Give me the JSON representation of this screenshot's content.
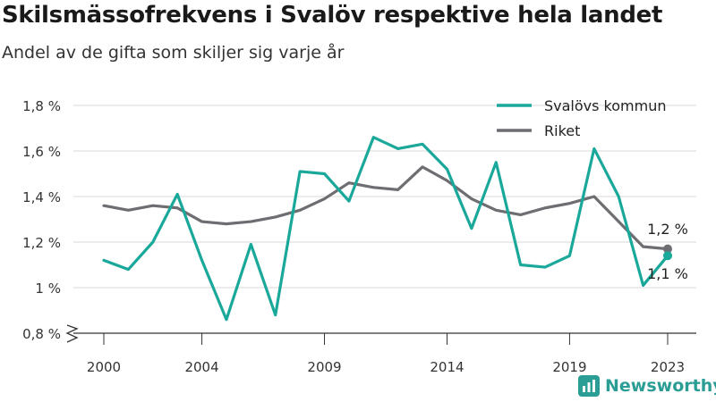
{
  "header": {
    "title": "Skilsmässofrekvens i Svalöv respektive hela landet",
    "subtitle": "Andel av de gifta som skiljer sig varje år"
  },
  "brand": {
    "name": "Newsworthy",
    "icon": "bar-chart-logo-icon",
    "color": "#2a9d95"
  },
  "chart_data": {
    "type": "line",
    "title": "Skilsmässofrekvens i Svalöv respektive hela landet",
    "subtitle": "Andel av de gifta som skiljer sig varje år",
    "x": [
      2000,
      2001,
      2002,
      2003,
      2004,
      2005,
      2006,
      2007,
      2008,
      2009,
      2010,
      2011,
      2012,
      2013,
      2014,
      2015,
      2016,
      2017,
      2018,
      2019,
      2020,
      2021,
      2022,
      2023
    ],
    "x_ticks": [
      2000,
      2004,
      2009,
      2014,
      2019,
      2023
    ],
    "x_tick_labels": [
      "2000",
      "2004",
      "2009",
      "2014",
      "2019",
      "2023"
    ],
    "ylim": [
      0.8,
      1.8
    ],
    "y_ticks": [
      0.8,
      1.0,
      1.2,
      1.4,
      1.6,
      1.8
    ],
    "y_tick_labels": [
      "0,8 %",
      "1 %",
      "1,2 %",
      "1,4 %",
      "1,6 %",
      "1,8 %"
    ],
    "y_axis_break": true,
    "grid": true,
    "legend_position": "top-right",
    "series": [
      {
        "name": "Svalövs kommun",
        "color": "#1aa89a",
        "values": [
          1.12,
          1.08,
          1.2,
          1.41,
          1.12,
          0.86,
          1.19,
          0.88,
          1.51,
          1.5,
          1.38,
          1.66,
          1.61,
          1.63,
          1.52,
          1.26,
          1.55,
          1.1,
          1.09,
          1.14,
          1.61,
          1.4,
          1.01,
          1.14
        ],
        "end_label": "1,1 %"
      },
      {
        "name": "Riket",
        "color": "#6d6d72",
        "values": [
          1.36,
          1.34,
          1.36,
          1.35,
          1.29,
          1.28,
          1.29,
          1.31,
          1.34,
          1.39,
          1.46,
          1.44,
          1.43,
          1.53,
          1.47,
          1.39,
          1.34,
          1.32,
          1.35,
          1.37,
          1.4,
          1.29,
          1.18,
          1.17
        ],
        "end_label": "1,2 %"
      }
    ]
  }
}
